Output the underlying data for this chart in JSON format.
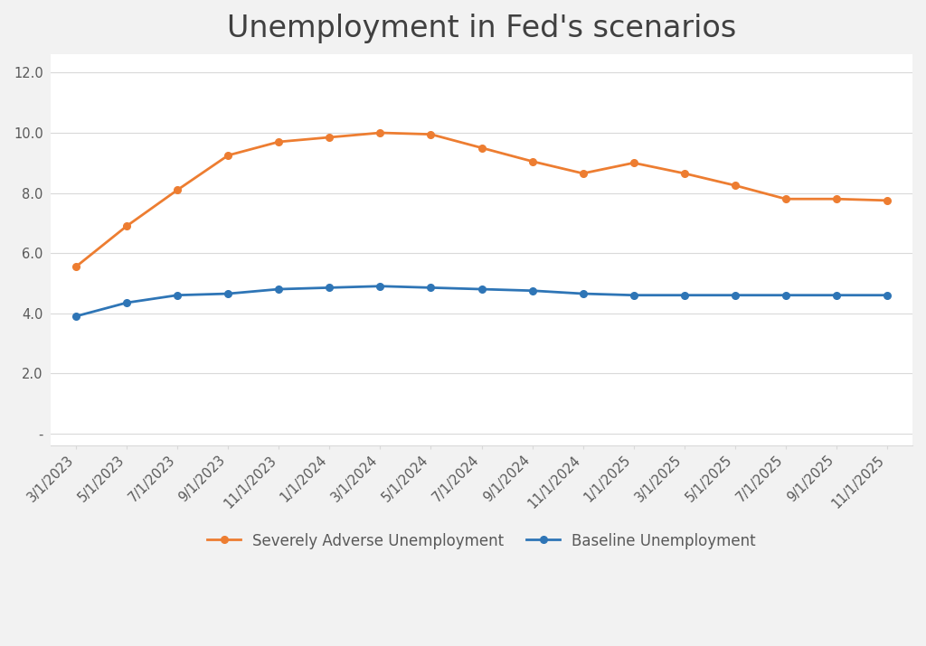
{
  "title": "Unemployment in Fed's scenarios",
  "x_labels": [
    "3/1/2023",
    "5/1/2023",
    "7/1/2023",
    "9/1/2023",
    "11/1/2023",
    "1/1/2024",
    "3/1/2024",
    "5/1/2024",
    "7/1/2024",
    "9/1/2024",
    "11/1/2024",
    "1/1/2025",
    "3/1/2025",
    "5/1/2025",
    "7/1/2025",
    "9/1/2025",
    "11/1/2025"
  ],
  "baseline": [
    3.9,
    4.35,
    4.6,
    4.65,
    4.8,
    4.85,
    4.9,
    4.85,
    4.8,
    4.75,
    4.65,
    4.6,
    4.6,
    4.6,
    4.6,
    4.6,
    4.6
  ],
  "severe": [
    5.55,
    6.9,
    8.1,
    9.25,
    9.7,
    9.85,
    10.0,
    9.95,
    9.5,
    9.05,
    8.65,
    9.0,
    8.65,
    8.25,
    7.8,
    7.8,
    7.75
  ],
  "baseline_color": "#2E75B6",
  "severe_color": "#ED7D31",
  "baseline_label": "Baseline Unemployment",
  "severe_label": "Severely Adverse Unemployment",
  "ylim_min": -0.4,
  "ylim_max": 12.6,
  "yticks": [
    0,
    2.0,
    4.0,
    6.0,
    8.0,
    10.0,
    12.0
  ],
  "ytick_labels": [
    "-",
    "2.0",
    "4.0",
    "6.0",
    "8.0",
    "10.0",
    "12.0"
  ],
  "background_color": "#F2F2F2",
  "plot_bg_color": "#FFFFFF",
  "outer_bg_color": "#F2F2F2",
  "grid_color": "#D9D9D9",
  "title_fontsize": 24,
  "legend_fontsize": 12,
  "tick_fontsize": 10.5
}
